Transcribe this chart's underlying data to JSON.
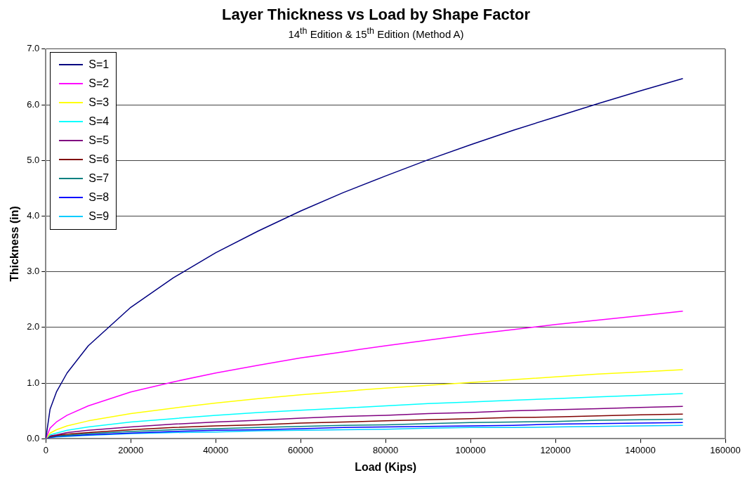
{
  "chart_data": {
    "type": "line",
    "title": "Layer Thickness vs Load by Shape Factor",
    "subtitle": "14$^{th}$ Edition & 15$^{th}$ Edition (Method A)",
    "xlabel": "Load (Kips)",
    "ylabel": "Thickness (in)",
    "x": [
      0,
      1000,
      2500,
      5000,
      10000,
      20000,
      30000,
      40000,
      50000,
      60000,
      70000,
      80000,
      90000,
      100000,
      110000,
      120000,
      130000,
      140000,
      150000
    ],
    "series": [
      {
        "name": "S=1",
        "color": "#000080",
        "values": [
          0,
          0.53,
          0.84,
          1.18,
          1.67,
          2.36,
          2.89,
          3.34,
          3.73,
          4.09,
          4.42,
          4.72,
          5.01,
          5.28,
          5.54,
          5.78,
          6.02,
          6.25,
          6.47
        ]
      },
      {
        "name": "S=2",
        "color": "#ff00ff",
        "values": [
          0,
          0.19,
          0.3,
          0.42,
          0.59,
          0.84,
          1.02,
          1.18,
          1.32,
          1.45,
          1.56,
          1.67,
          1.77,
          1.87,
          1.96,
          2.05,
          2.13,
          2.21,
          2.29
        ]
      },
      {
        "name": "S=3",
        "color": "#ffff00",
        "values": [
          0,
          0.1,
          0.16,
          0.23,
          0.32,
          0.45,
          0.55,
          0.64,
          0.72,
          0.79,
          0.85,
          0.91,
          0.96,
          1.01,
          1.06,
          1.11,
          1.16,
          1.2,
          1.24
        ]
      },
      {
        "name": "S=4",
        "color": "#00ffff",
        "values": [
          0,
          0.07,
          0.1,
          0.15,
          0.21,
          0.3,
          0.36,
          0.42,
          0.47,
          0.51,
          0.55,
          0.59,
          0.63,
          0.66,
          0.69,
          0.72,
          0.75,
          0.78,
          0.81
        ]
      },
      {
        "name": "S=5",
        "color": "#800080",
        "values": [
          0,
          0.05,
          0.07,
          0.11,
          0.15,
          0.21,
          0.26,
          0.3,
          0.33,
          0.37,
          0.4,
          0.42,
          0.45,
          0.47,
          0.5,
          0.52,
          0.54,
          0.56,
          0.58
        ]
      },
      {
        "name": "S=6",
        "color": "#800000",
        "values": [
          0,
          0.04,
          0.06,
          0.08,
          0.11,
          0.16,
          0.2,
          0.23,
          0.25,
          0.28,
          0.3,
          0.32,
          0.34,
          0.36,
          0.38,
          0.39,
          0.41,
          0.43,
          0.44
        ]
      },
      {
        "name": "S=7",
        "color": "#008080",
        "values": [
          0,
          0.03,
          0.05,
          0.06,
          0.09,
          0.13,
          0.16,
          0.18,
          0.2,
          0.22,
          0.24,
          0.25,
          0.27,
          0.29,
          0.3,
          0.31,
          0.33,
          0.34,
          0.35
        ]
      },
      {
        "name": "S=8",
        "color": "#0000ff",
        "values": [
          0,
          0.02,
          0.04,
          0.05,
          0.07,
          0.1,
          0.13,
          0.15,
          0.16,
          0.18,
          0.2,
          0.21,
          0.22,
          0.23,
          0.24,
          0.26,
          0.27,
          0.28,
          0.29
        ]
      },
      {
        "name": "S=9",
        "color": "#00ccff",
        "values": [
          0,
          0.02,
          0.03,
          0.04,
          0.06,
          0.09,
          0.11,
          0.12,
          0.14,
          0.15,
          0.16,
          0.17,
          0.19,
          0.2,
          0.2,
          0.21,
          0.22,
          0.23,
          0.24
        ]
      }
    ],
    "xlim": [
      0,
      160000
    ],
    "xticks": [
      0,
      20000,
      40000,
      60000,
      80000,
      100000,
      120000,
      140000,
      160000
    ],
    "ylim": [
      0,
      7
    ],
    "yticks": [
      {
        "value": 0,
        "label": "0.0"
      },
      {
        "value": 1,
        "label": "1.0"
      },
      {
        "value": 2,
        "label": "2.0"
      },
      {
        "value": 3,
        "label": "3.0"
      },
      {
        "value": 4,
        "label": "4.0"
      },
      {
        "value": 5,
        "label": "5.0"
      },
      {
        "value": 6,
        "label": "6.0"
      },
      {
        "value": 7,
        "label": "7.0"
      }
    ],
    "grid": "y",
    "legend": "top left",
    "marker": "none",
    "line_style": "solid"
  }
}
